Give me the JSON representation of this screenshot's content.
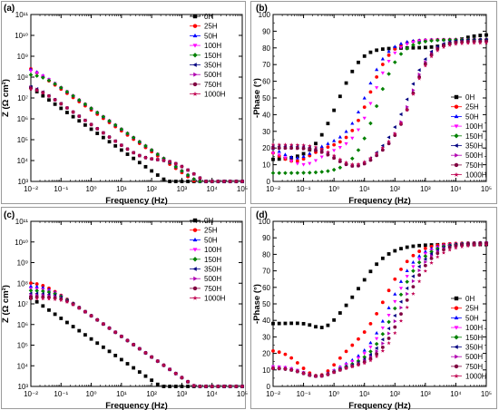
{
  "series_styles": [
    {
      "name": "0H",
      "color": "#000000",
      "marker": "square"
    },
    {
      "name": "25H",
      "color": "#ff0000",
      "marker": "circle"
    },
    {
      "name": "50H",
      "color": "#0000ff",
      "marker": "triangle-up"
    },
    {
      "name": "100H",
      "color": "#ff00ff",
      "marker": "triangle-down"
    },
    {
      "name": "150H",
      "color": "#008000",
      "marker": "diamond"
    },
    {
      "name": "350H",
      "color": "#000080",
      "marker": "triangle-left"
    },
    {
      "name": "500H",
      "color": "#b000b0",
      "marker": "triangle-right"
    },
    {
      "name": "750H",
      "color": "#800040",
      "marker": "circle"
    },
    {
      "name": "1000H",
      "color": "#c00050",
      "marker": "star"
    }
  ],
  "chart_data": [
    {
      "panel": "(a)",
      "type": "scatter",
      "xlabel": "Frequency (Hz)",
      "ylabel": "Z (Ω cm²)",
      "xscale": "log",
      "yscale": "log",
      "xlim": [
        0.01,
        100000
      ],
      "ylim": [
        1000,
        100000000000
      ],
      "x_ticks": [
        "10⁻²",
        "10⁻¹",
        "10⁰",
        "10¹",
        "10²",
        "10³",
        "10⁴",
        "10⁵"
      ],
      "y_ticks": [
        "10³",
        "10⁴",
        "10⁵",
        "10⁶",
        "10⁷",
        "10⁸",
        "10⁹",
        "10¹⁰",
        "10¹¹"
      ],
      "legend_position": "top-right",
      "model": "impedance",
      "series": [
        {
          "name": "0H",
          "params": {
            "Rs": 20,
            "R1": 50,
            "R2": 4000000000,
            "C1": 1e-06,
            "C2": 5e-07
          }
        },
        {
          "name": "25H",
          "params": {
            "Rs": 20,
            "R1": 60,
            "R2": 700000000,
            "C1": 4e-07,
            "C2": 6e-08
          }
        },
        {
          "name": "50H",
          "params": {
            "Rs": 20,
            "R1": 60,
            "R2": 350000000,
            "C1": 4e-07,
            "C2": 5e-08
          }
        },
        {
          "name": "100H",
          "params": {
            "Rs": 20,
            "R1": 60,
            "R2": 260000000,
            "C1": 4e-07,
            "C2": 5e-08
          }
        },
        {
          "name": "150H",
          "params": {
            "Rs": 20,
            "R1": 60,
            "R2": 140000000,
            "C1": 4e-07,
            "C2": 5e-08
          }
        },
        {
          "name": "350H",
          "params": {
            "Rs": 20,
            "R1": 10000,
            "R2": 45000000,
            "C1": 3e-08,
            "C2": 3e-07
          }
        },
        {
          "name": "500H",
          "params": {
            "Rs": 20,
            "R1": 10000,
            "R2": 40000000,
            "C1": 3e-08,
            "C2": 3e-07
          }
        },
        {
          "name": "750H",
          "params": {
            "Rs": 20,
            "R1": 10000,
            "R2": 35000000,
            "C1": 3e-08,
            "C2": 3e-07
          }
        },
        {
          "name": "1000H",
          "params": {
            "Rs": 20,
            "R1": 10000,
            "R2": 30000000,
            "C1": 3e-08,
            "C2": 3e-07
          }
        }
      ]
    },
    {
      "panel": "(b)",
      "type": "scatter",
      "xlabel": "Frequency (Hz)",
      "ylabel": "-Phase (°)",
      "xscale": "log",
      "yscale": "linear",
      "xlim": [
        0.01,
        100000
      ],
      "ylim": [
        0,
        100
      ],
      "x_ticks": [
        "10⁻²",
        "10⁻¹",
        "10⁰",
        "10¹",
        "10²",
        "10³",
        "10⁴",
        "10⁵"
      ],
      "y_ticks": [
        "0",
        "10",
        "20",
        "30",
        "40",
        "50",
        "60",
        "70",
        "80",
        "90",
        "100"
      ],
      "legend_position": "center-right",
      "model": "phase",
      "series": [
        {
          "name": "0H",
          "params": {
            "base": 13,
            "top": 80,
            "center": 1,
            "width": 0.35,
            "dip_center": 2,
            "dip_depth": 5,
            "dip_width": 0.6,
            "end": 88
          }
        },
        {
          "name": "25H",
          "params": {
            "base": 20,
            "top": 85,
            "center": 15,
            "width": 0.35,
            "low_center": 0.05,
            "low_depth": 8,
            "low_width": 0.7
          }
        },
        {
          "name": "50H",
          "params": {
            "base": 22,
            "top": 85,
            "center": 12,
            "width": 0.35,
            "low_center": 0.06,
            "low_depth": 8,
            "low_width": 0.7
          }
        },
        {
          "name": "100H",
          "params": {
            "base": 18,
            "top": 85,
            "center": 20,
            "width": 0.35,
            "low_center": 0.1,
            "low_depth": 8,
            "low_width": 0.7
          }
        },
        {
          "name": "150H",
          "params": {
            "base": 5,
            "top": 85,
            "center": 25,
            "width": 0.38
          }
        },
        {
          "name": "350H",
          "params": {
            "base": 21,
            "top": 85,
            "center": 300,
            "width": 0.35,
            "low_center": 5,
            "low_depth": 12,
            "low_width": 0.9
          }
        },
        {
          "name": "500H",
          "params": {
            "base": 20,
            "top": 84,
            "center": 350,
            "width": 0.32,
            "low_center": 5,
            "low_depth": 11,
            "low_width": 0.9
          }
        },
        {
          "name": "750H",
          "params": {
            "base": 20,
            "top": 84,
            "center": 380,
            "width": 0.32,
            "low_center": 5,
            "low_depth": 11,
            "low_width": 0.9
          }
        },
        {
          "name": "1000H",
          "params": {
            "base": 22,
            "top": 83,
            "center": 400,
            "width": 0.32,
            "low_center": 5,
            "low_depth": 12,
            "low_width": 0.9
          }
        }
      ]
    },
    {
      "panel": "(c)",
      "type": "scatter",
      "xlabel": "Frequency (Hz)",
      "ylabel": "Z (Ω cm²)",
      "xscale": "log",
      "yscale": "log",
      "xlim": [
        0.01,
        100000
      ],
      "ylim": [
        1000,
        100000000000
      ],
      "x_ticks": [
        "10⁻²",
        "10⁻¹",
        "10⁰",
        "10¹",
        "10²",
        "10³",
        "10⁴",
        "10⁵"
      ],
      "y_ticks": [
        "10³",
        "10⁴",
        "10⁵",
        "10⁶",
        "10⁷",
        "10⁸",
        "10⁹",
        "10¹⁰",
        "10¹¹"
      ],
      "legend_position": "top-right",
      "model": "impedance",
      "series": [
        {
          "name": "0H",
          "params": {
            "Rs": 20,
            "R1": 50,
            "R2": 5000000000,
            "C1": 1e-06,
            "C2": 8e-07
          }
        },
        {
          "name": "25H",
          "params": {
            "Rs": 20,
            "R1": 60,
            "R2": 110000000,
            "C1": 4e-07,
            "C2": 6e-08
          }
        },
        {
          "name": "50H",
          "params": {
            "Rs": 20,
            "R1": 60,
            "R2": 75000000,
            "C1": 4e-07,
            "C2": 6e-08
          }
        },
        {
          "name": "100H",
          "params": {
            "Rs": 20,
            "R1": 60,
            "R2": 55000000,
            "C1": 4e-07,
            "C2": 6e-08
          }
        },
        {
          "name": "150H",
          "params": {
            "Rs": 20,
            "R1": 60,
            "R2": 45000000,
            "C1": 4e-07,
            "C2": 6e-08
          }
        },
        {
          "name": "350H",
          "params": {
            "Rs": 20,
            "R1": 60,
            "R2": 32000000,
            "C1": 4e-07,
            "C2": 6e-08
          }
        },
        {
          "name": "500H",
          "params": {
            "Rs": 20,
            "R1": 60,
            "R2": 27000000,
            "C1": 4e-07,
            "C2": 6e-08
          }
        },
        {
          "name": "750H",
          "params": {
            "Rs": 20,
            "R1": 60,
            "R2": 22000000,
            "C1": 4e-07,
            "C2": 6e-08
          }
        },
        {
          "name": "1000H",
          "params": {
            "Rs": 20,
            "R1": 60,
            "R2": 18000000,
            "C1": 4e-07,
            "C2": 6e-08
          }
        }
      ]
    },
    {
      "panel": "(d)",
      "type": "scatter",
      "xlabel": "Frequency (Hz)",
      "ylabel": "-Phase (°)",
      "xscale": "log",
      "yscale": "linear",
      "xlim": [
        0.01,
        100000
      ],
      "ylim": [
        0,
        100
      ],
      "x_ticks": [
        "10⁻²",
        "10⁻¹",
        "10⁰",
        "10¹",
        "10²",
        "10³",
        "10⁴",
        "10⁵"
      ],
      "y_ticks": [
        "0",
        "10",
        "20",
        "30",
        "40",
        "50",
        "60",
        "70",
        "80",
        "90",
        "100"
      ],
      "legend_position": "center-right",
      "model": "phase",
      "series": [
        {
          "name": "0H",
          "params": {
            "base": 38,
            "top": 86,
            "center": 8,
            "width": 0.45,
            "low_center": 0.5,
            "low_depth": 5,
            "low_width": 0.5
          }
        },
        {
          "name": "25H",
          "params": {
            "base": 22,
            "top": 87,
            "center": 50,
            "width": 0.45,
            "low_center": 0.3,
            "low_depth": 16,
            "low_width": 0.8
          }
        },
        {
          "name": "50H",
          "params": {
            "base": 12,
            "top": 87,
            "center": 70,
            "width": 0.45,
            "low_center": 0.3,
            "low_depth": 6,
            "low_width": 0.7
          }
        },
        {
          "name": "100H",
          "params": {
            "base": 12,
            "top": 87,
            "center": 90,
            "width": 0.45,
            "low_center": 0.3,
            "low_depth": 6,
            "low_width": 0.7
          }
        },
        {
          "name": "150H",
          "params": {
            "base": 11,
            "top": 87,
            "center": 110,
            "width": 0.45,
            "low_center": 0.3,
            "low_depth": 5,
            "low_width": 0.7
          }
        },
        {
          "name": "350H",
          "params": {
            "base": 11,
            "top": 87,
            "center": 140,
            "width": 0.45,
            "low_center": 0.3,
            "low_depth": 5,
            "low_width": 0.7
          }
        },
        {
          "name": "500H",
          "params": {
            "base": 11,
            "top": 87,
            "center": 170,
            "width": 0.45,
            "low_center": 0.3,
            "low_depth": 5,
            "low_width": 0.7
          }
        },
        {
          "name": "750H",
          "params": {
            "base": 11,
            "top": 87,
            "center": 210,
            "width": 0.45,
            "low_center": 0.3,
            "low_depth": 5,
            "low_width": 0.7
          }
        },
        {
          "name": "1000H",
          "params": {
            "base": 11,
            "top": 86,
            "center": 260,
            "width": 0.45,
            "low_center": 0.3,
            "low_depth": 5,
            "low_width": 0.7
          }
        }
      ]
    }
  ]
}
